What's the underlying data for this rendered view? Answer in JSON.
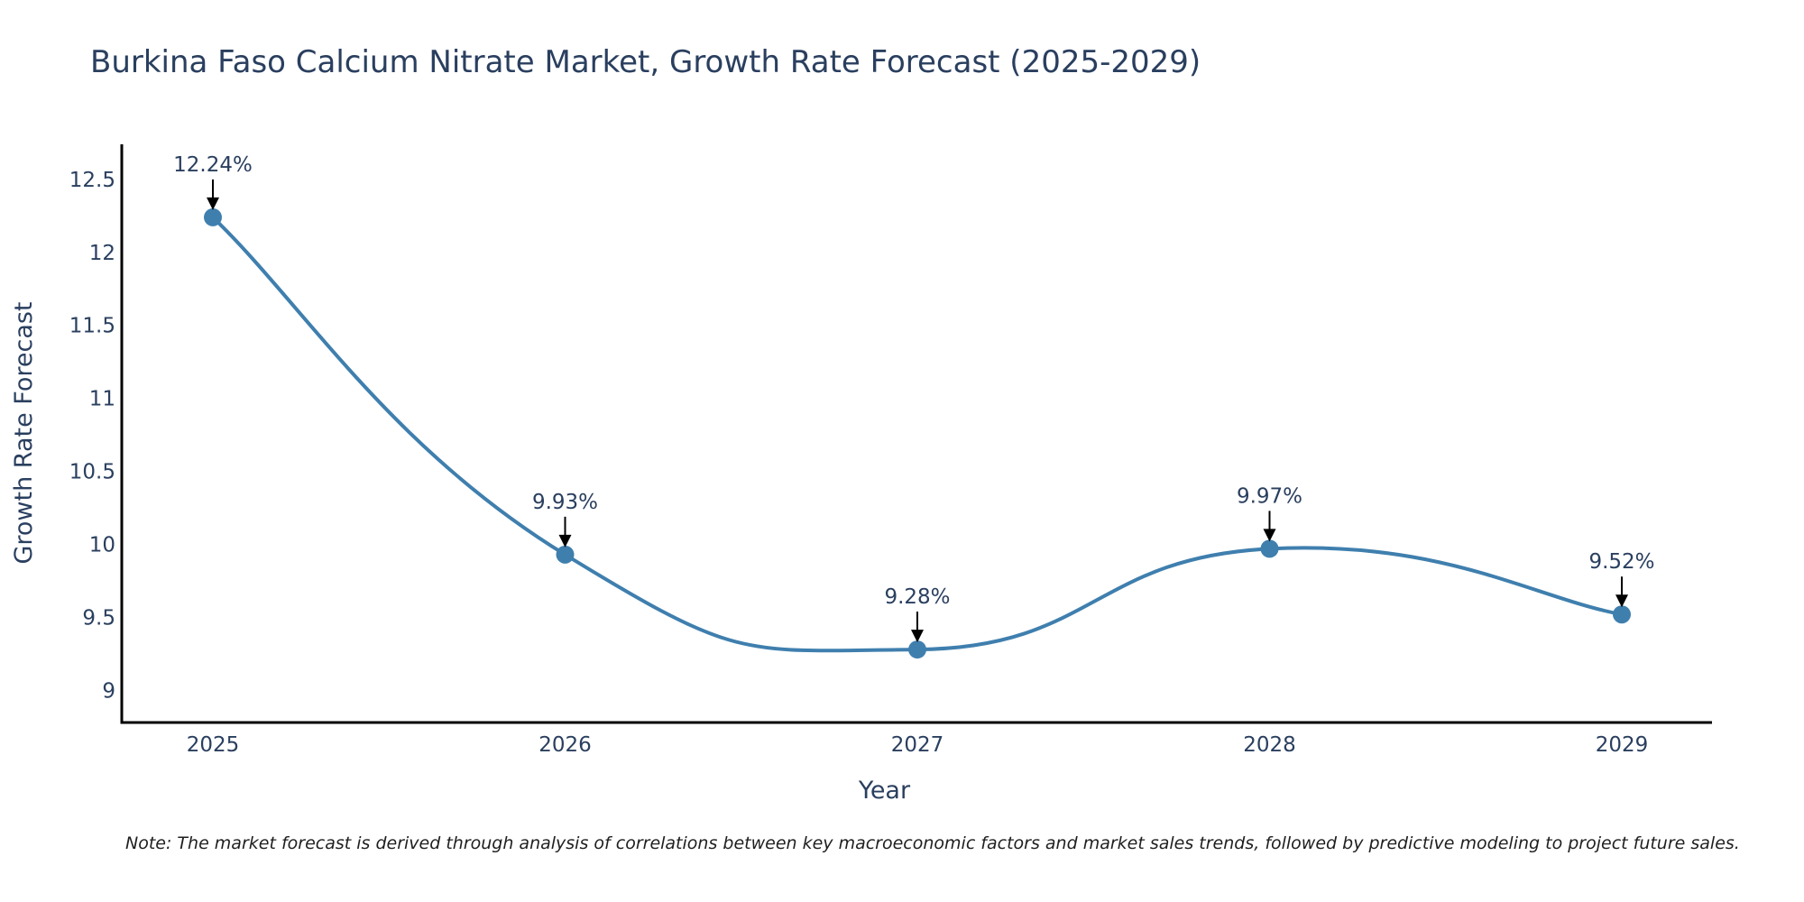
{
  "chart_data": {
    "type": "line",
    "title": "Burkina Faso Calcium Nitrate Market, Growth Rate Forecast (2025-2029)",
    "xlabel": "Year",
    "ylabel": "Growth Rate Forecast",
    "categories": [
      "2025",
      "2026",
      "2027",
      "2028",
      "2029"
    ],
    "values": [
      12.24,
      9.93,
      9.28,
      9.97,
      9.52
    ],
    "data_labels": [
      "12.24%",
      "9.93%",
      "9.28%",
      "9.97%",
      "9.52%"
    ],
    "ylim": [
      8.78,
      12.74
    ],
    "yticks": [
      9,
      9.5,
      10,
      10.5,
      11,
      11.5,
      12,
      12.5
    ],
    "ytick_labels": [
      "9",
      "9.5",
      "10",
      "10.5",
      "11",
      "11.5",
      "12",
      "12.5"
    ],
    "grid": false,
    "line_color": "#3f7fae",
    "note": "Note: The market forecast is derived through analysis of correlations between key macroeconomic factors and market sales trends, followed by predictive modeling to project future sales."
  }
}
